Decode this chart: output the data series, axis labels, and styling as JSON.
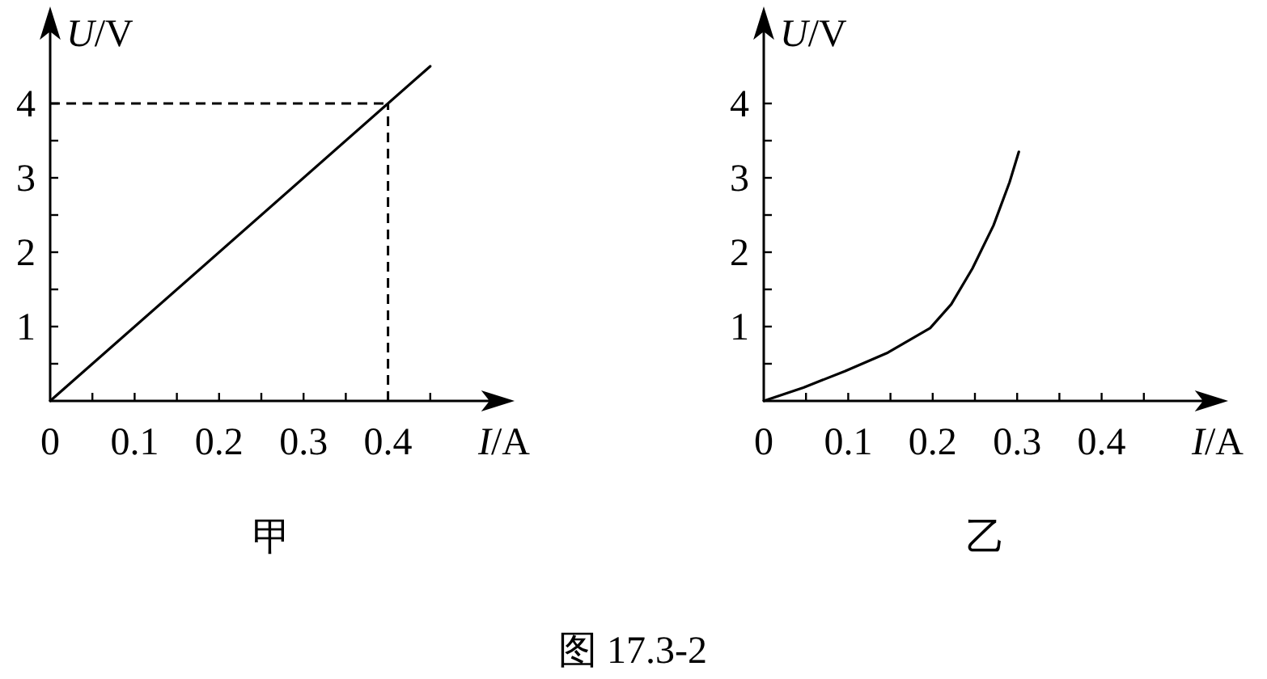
{
  "chart_data": [
    {
      "type": "line",
      "title": "甲",
      "xlabel": "I/A",
      "ylabel": "U/V",
      "x": [
        0,
        0.45
      ],
      "series": [
        {
          "color": "#000000",
          "values": [
            0,
            4.5
          ]
        }
      ],
      "xlim": [
        0,
        0.545
      ],
      "ylim": [
        0,
        5.25
      ],
      "xticks": [
        0,
        {
          "value": 0.05,
          "label": null
        },
        0.1,
        {
          "value": 0.15,
          "label": null
        },
        0.2,
        {
          "value": 0.25,
          "label": null
        },
        0.3,
        {
          "value": 0.35,
          "label": null
        },
        0.4,
        {
          "value": 0.45,
          "label": null
        }
      ],
      "yticks": [
        {
          "value": 0.5,
          "label": null
        },
        1,
        {
          "value": 1.5,
          "label": null
        },
        2,
        {
          "value": 2.5,
          "label": null
        },
        3,
        {
          "value": 3.5,
          "label": null
        },
        4
      ],
      "ref_lines": [
        {
          "axis": "x",
          "value": 0.4,
          "line_style": "dashed"
        },
        {
          "axis": "y",
          "value": 4,
          "line_style": "dashed"
        }
      ],
      "annotations": [
        "图 17.3-2"
      ]
    },
    {
      "type": "line",
      "title": "乙",
      "xlabel": "I/A",
      "ylabel": "U/V",
      "x": [
        0,
        0.047,
        0.096,
        0.147,
        0.197,
        0.222,
        0.247,
        0.272,
        0.291,
        0.302
      ],
      "series": [
        {
          "color": "#000000",
          "values": [
            0,
            0.18,
            0.4,
            0.65,
            0.98,
            1.3,
            1.78,
            2.36,
            2.94,
            3.35
          ]
        }
      ],
      "xlim": [
        0,
        0.545
      ],
      "ylim": [
        0,
        5.25
      ],
      "xticks": [
        0,
        {
          "value": 0.05,
          "label": null
        },
        0.1,
        {
          "value": 0.15,
          "label": null
        },
        0.2,
        {
          "value": 0.25,
          "label": null
        },
        0.3,
        {
          "value": 0.35,
          "label": null
        },
        0.4,
        {
          "value": 0.45,
          "label": null
        }
      ],
      "yticks": [
        {
          "value": 0.5,
          "label": null
        },
        1,
        {
          "value": 1.5,
          "label": null
        },
        2,
        {
          "value": 2.5,
          "label": null
        },
        3,
        {
          "value": 3.5,
          "label": null
        },
        4
      ]
    }
  ]
}
